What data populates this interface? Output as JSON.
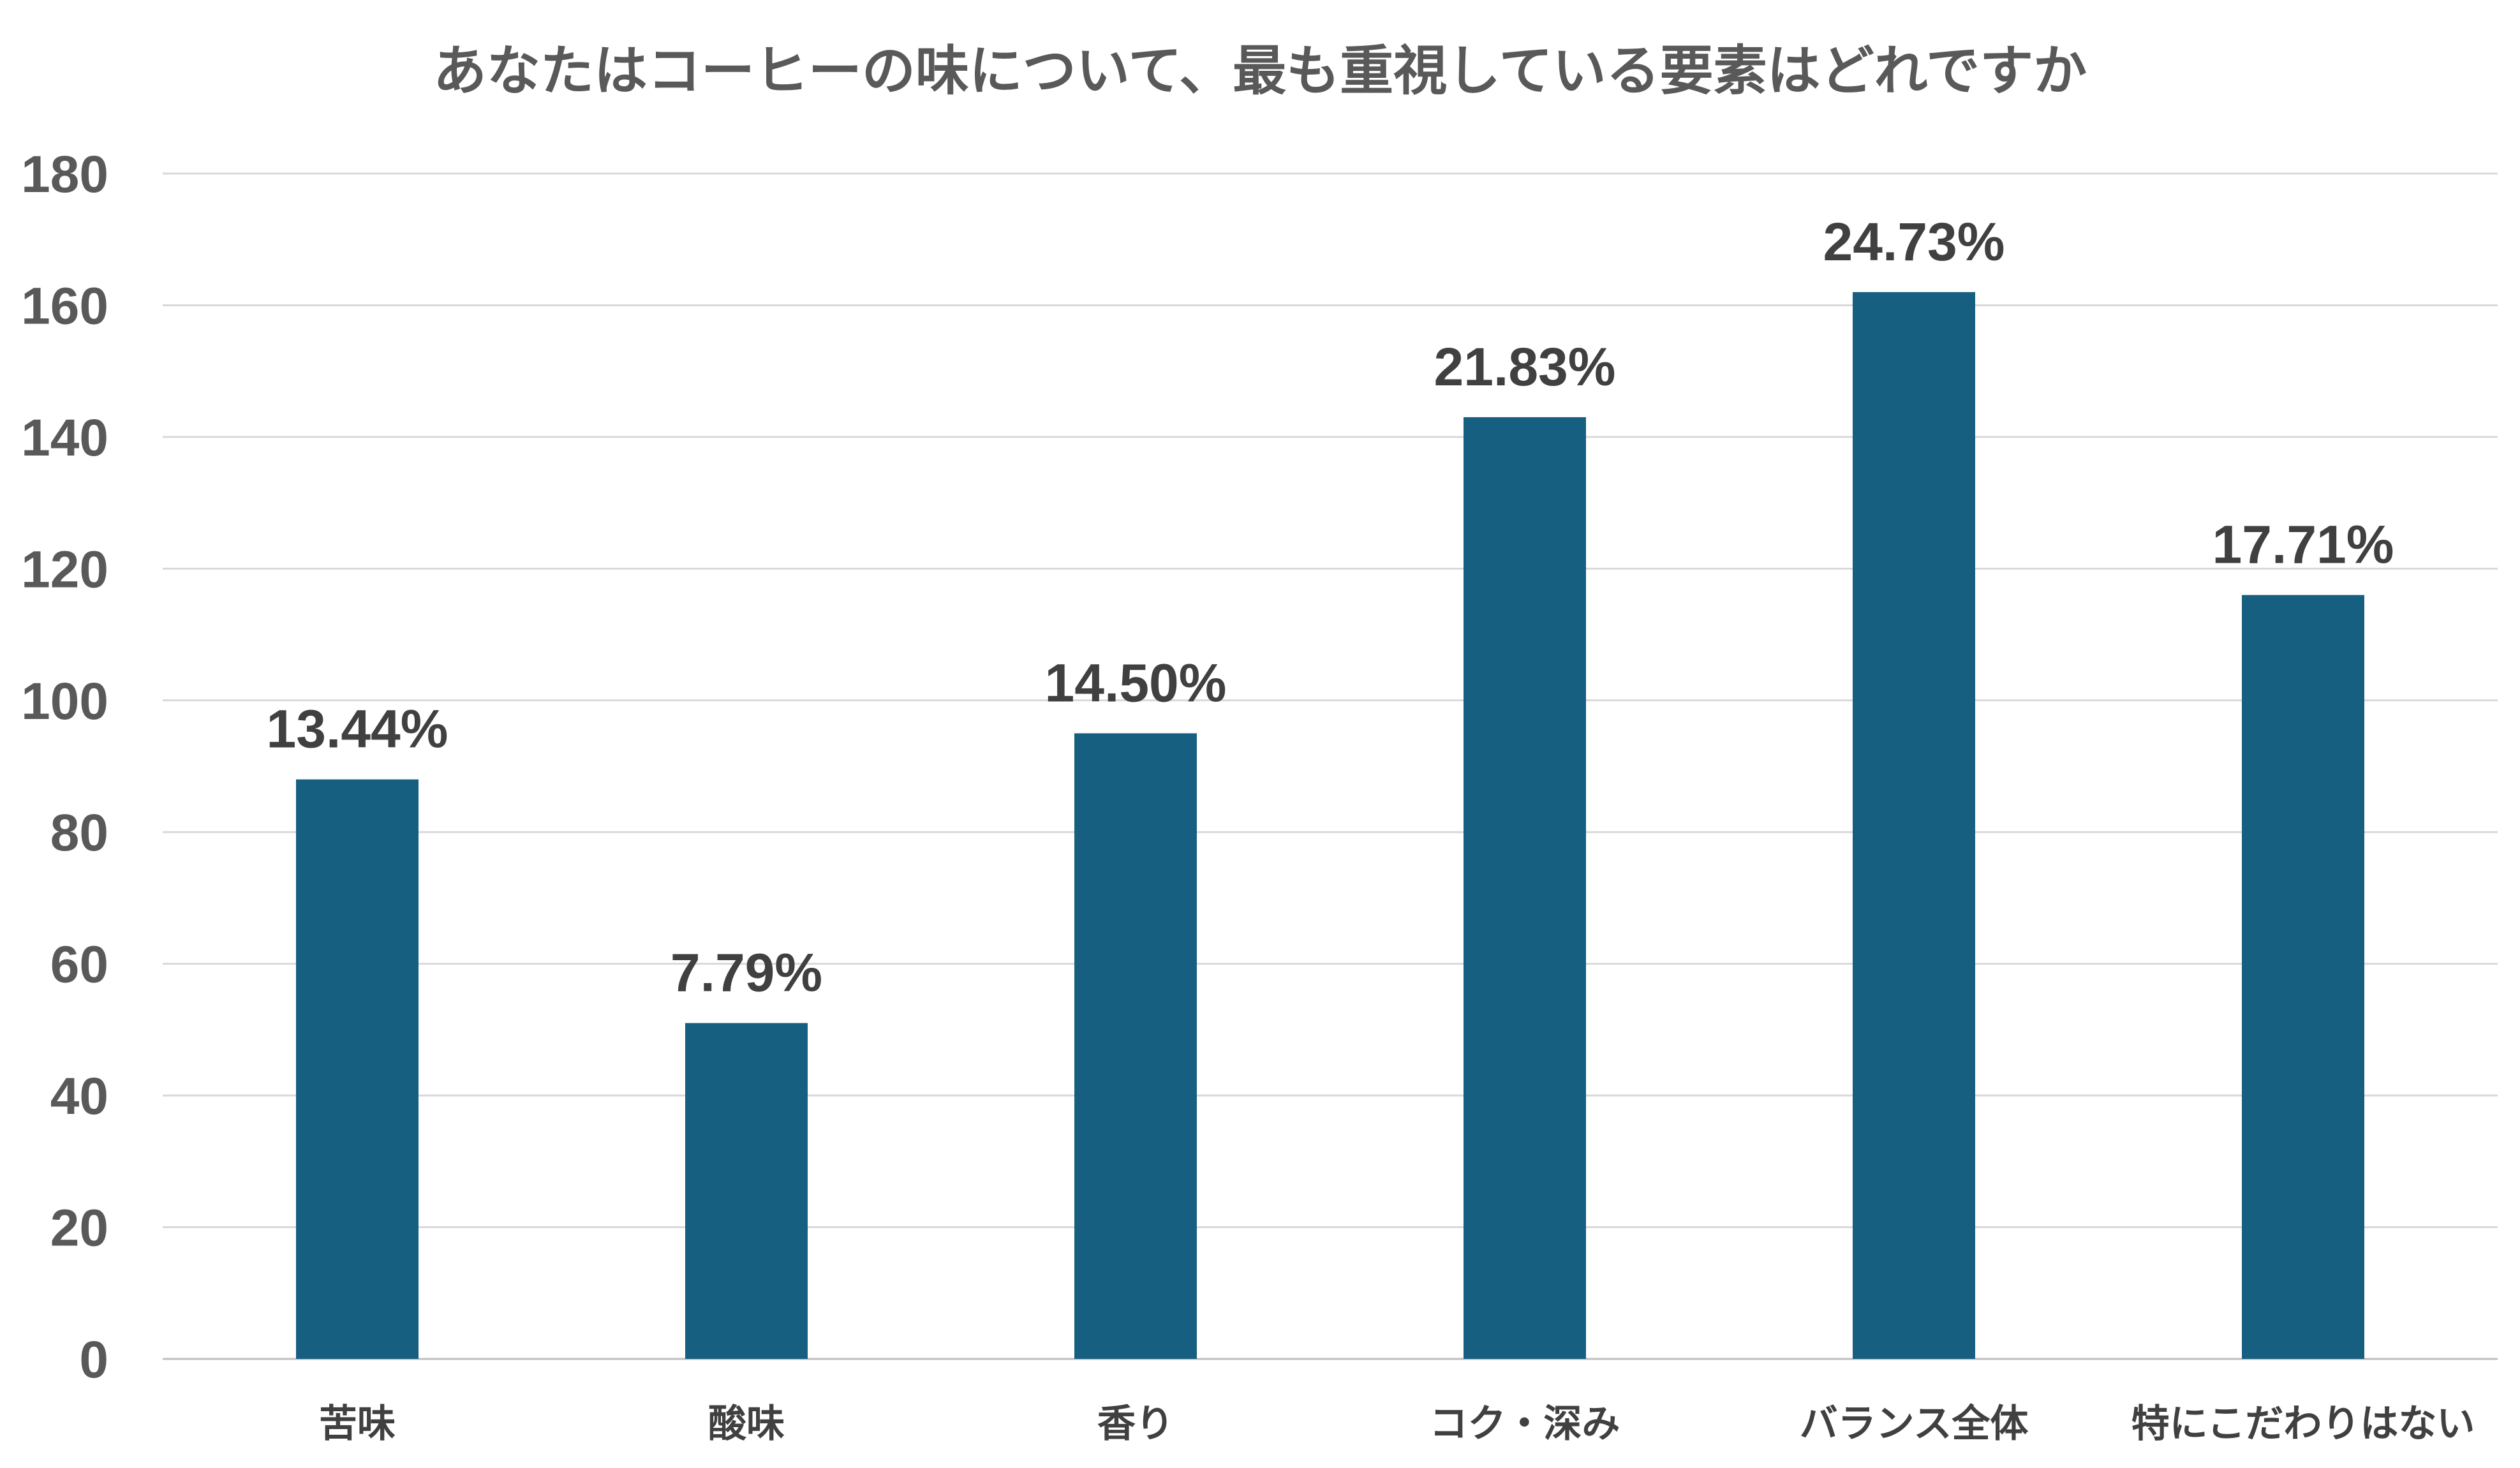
{
  "chart_data": {
    "type": "bar",
    "title": "あなたはコーヒーの味について、最も重視している要素はどれですか",
    "categories": [
      "苦味",
      "酸味",
      "香り",
      "コク・深み",
      "バランス全体",
      "特にこだわりはない"
    ],
    "values": [
      88,
      51,
      95,
      143,
      162,
      116
    ],
    "data_labels": [
      "13.44%",
      "7.79%",
      "14.50%",
      "21.83%",
      "24.73%",
      "17.71%"
    ],
    "ylim": [
      0,
      180
    ],
    "y_ticks": [
      0,
      20,
      40,
      60,
      80,
      100,
      120,
      140,
      160,
      180
    ],
    "xlabel": "",
    "ylabel": "",
    "grid": true,
    "legend": "none",
    "colors": {
      "bar": "#175f80",
      "gridline": "#d9d9d9",
      "title": "#595959"
    }
  }
}
